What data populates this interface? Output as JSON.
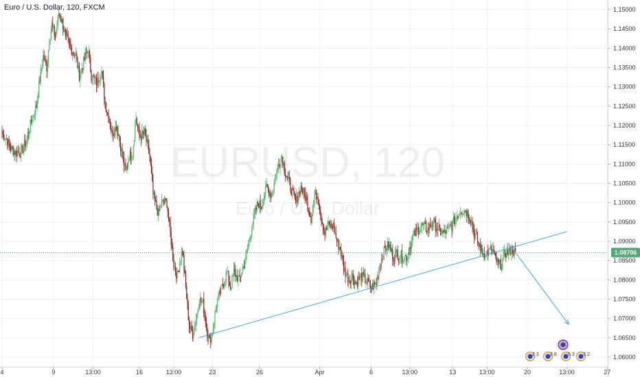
{
  "header": {
    "title": "Euro / U.S. Dollar, 120, FXCM"
  },
  "watermark": {
    "symbol": "EURUSD, 120",
    "description": "Euro / U.S. Dollar"
  },
  "current_price": {
    "label": "1.08706",
    "value": 1.08706,
    "color": "#53a676"
  },
  "colors": {
    "up": "#52b56a",
    "down": "#8b1f1f",
    "trend": "#4aa3df",
    "grid": "#eef0f3"
  },
  "events": [
    {
      "label": "2 3"
    },
    {
      "label": "2 8"
    },
    {
      "label": "5 3"
    },
    {
      "label": "3 2"
    }
  ],
  "chart_data": {
    "type": "candlestick",
    "title": "Euro / U.S. Dollar, 120, FXCM",
    "ylim": [
      1.0575,
      1.1525
    ],
    "y_ticks": [
      "1.15000",
      "1.14500",
      "1.14000",
      "1.13500",
      "1.13000",
      "1.12500",
      "1.12000",
      "1.11500",
      "1.11000",
      "1.10500",
      "1.10000",
      "1.09500",
      "1.09000",
      "1.08500",
      "1.08000",
      "1.07500",
      "1.07000",
      "1.06500",
      "1.06000"
    ],
    "x_ticks": [
      {
        "label": "4",
        "t": 0
      },
      {
        "label": "9",
        "t": 60
      },
      {
        "label": "13:00",
        "t": 106
      },
      {
        "label": "16",
        "t": 160
      },
      {
        "label": "13:00",
        "t": 200
      },
      {
        "label": "23",
        "t": 245
      },
      {
        "label": "26",
        "t": 300
      },
      {
        "label": "Apr",
        "t": 370
      },
      {
        "label": "6",
        "t": 430
      },
      {
        "label": "13:00",
        "t": 475
      },
      {
        "label": "13",
        "t": 525
      },
      {
        "label": "13:00",
        "t": 565
      },
      {
        "label": "20",
        "t": 612
      },
      {
        "label": "13:00",
        "t": 658
      },
      {
        "label": "27",
        "t": 705
      }
    ],
    "anchors": [
      [
        0,
        1.118
      ],
      [
        6,
        1.116
      ],
      [
        10,
        1.114
      ],
      [
        16,
        1.113
      ],
      [
        22,
        1.113
      ],
      [
        28,
        1.116
      ],
      [
        34,
        1.121
      ],
      [
        40,
        1.125
      ],
      [
        44,
        1.132
      ],
      [
        48,
        1.138
      ],
      [
        52,
        1.135
      ],
      [
        55,
        1.142
      ],
      [
        58,
        1.146
      ],
      [
        62,
        1.143
      ],
      [
        66,
        1.149
      ],
      [
        70,
        1.147
      ],
      [
        74,
        1.143
      ],
      [
        80,
        1.14
      ],
      [
        86,
        1.138
      ],
      [
        90,
        1.133
      ],
      [
        96,
        1.137
      ],
      [
        100,
        1.14
      ],
      [
        104,
        1.133
      ],
      [
        110,
        1.131
      ],
      [
        116,
        1.134
      ],
      [
        120,
        1.126
      ],
      [
        124,
        1.122
      ],
      [
        128,
        1.118
      ],
      [
        134,
        1.12
      ],
      [
        140,
        1.112
      ],
      [
        144,
        1.108
      ],
      [
        148,
        1.112
      ],
      [
        152,
        1.113
      ],
      [
        156,
        1.122
      ],
      [
        160,
        1.117
      ],
      [
        166,
        1.118
      ],
      [
        172,
        1.112
      ],
      [
        176,
        1.102
      ],
      [
        182,
        1.097
      ],
      [
        186,
        1.1
      ],
      [
        192,
        1.1
      ],
      [
        196,
        1.092
      ],
      [
        200,
        1.084
      ],
      [
        204,
        1.081
      ],
      [
        210,
        1.088
      ],
      [
        214,
        1.078
      ],
      [
        218,
        1.068
      ],
      [
        222,
        1.066
      ],
      [
        226,
        1.07
      ],
      [
        230,
        1.075
      ],
      [
        234,
        1.074
      ],
      [
        238,
        1.068
      ],
      [
        242,
        1.064
      ],
      [
        246,
        1.068
      ],
      [
        250,
        1.074
      ],
      [
        256,
        1.078
      ],
      [
        262,
        1.082
      ],
      [
        266,
        1.078
      ],
      [
        270,
        1.082
      ],
      [
        276,
        1.08
      ],
      [
        282,
        1.084
      ],
      [
        288,
        1.09
      ],
      [
        292,
        1.095
      ],
      [
        298,
        1.1
      ],
      [
        302,
        1.099
      ],
      [
        308,
        1.104
      ],
      [
        314,
        1.102
      ],
      [
        318,
        1.106
      ],
      [
        322,
        1.11
      ],
      [
        326,
        1.112
      ],
      [
        330,
        1.108
      ],
      [
        336,
        1.104
      ],
      [
        342,
        1.1
      ],
      [
        348,
        1.104
      ],
      [
        354,
        1.101
      ],
      [
        360,
        1.096
      ],
      [
        364,
        1.102
      ],
      [
        368,
        1.102
      ],
      [
        372,
        1.096
      ],
      [
        376,
        1.092
      ],
      [
        380,
        1.094
      ],
      [
        386,
        1.094
      ],
      [
        390,
        1.09
      ],
      [
        394,
        1.088
      ],
      [
        398,
        1.083
      ],
      [
        404,
        1.08
      ],
      [
        408,
        1.081
      ],
      [
        412,
        1.079
      ],
      [
        418,
        1.081
      ],
      [
        424,
        1.08
      ],
      [
        430,
        1.078
      ],
      [
        436,
        1.079
      ],
      [
        440,
        1.084
      ],
      [
        446,
        1.088
      ],
      [
        450,
        1.089
      ],
      [
        456,
        1.086
      ],
      [
        460,
        1.087
      ],
      [
        466,
        1.086
      ],
      [
        472,
        1.086
      ],
      [
        478,
        1.091
      ],
      [
        484,
        1.093
      ],
      [
        490,
        1.094
      ],
      [
        496,
        1.093
      ],
      [
        502,
        1.095
      ],
      [
        508,
        1.093
      ],
      [
        514,
        1.092
      ],
      [
        520,
        1.093
      ],
      [
        524,
        1.094
      ],
      [
        528,
        1.096
      ],
      [
        534,
        1.098
      ],
      [
        540,
        1.098
      ],
      [
        546,
        1.096
      ],
      [
        550,
        1.092
      ],
      [
        556,
        1.089
      ],
      [
        560,
        1.087
      ],
      [
        566,
        1.087
      ],
      [
        570,
        1.088
      ],
      [
        574,
        1.086
      ],
      [
        578,
        1.084
      ],
      [
        582,
        1.084
      ],
      [
        586,
        1.087
      ],
      [
        590,
        1.087
      ],
      [
        594,
        1.088
      ],
      [
        598,
        1.087
      ]
    ],
    "trendline": [
      {
        "t": 229,
        "price": 1.065
      },
      {
        "t": 658,
        "price": 1.0925
      }
    ],
    "projection_arrow": [
      {
        "t": 590,
        "price": 1.0895
      },
      {
        "t": 660,
        "price": 1.0685
      }
    ]
  }
}
